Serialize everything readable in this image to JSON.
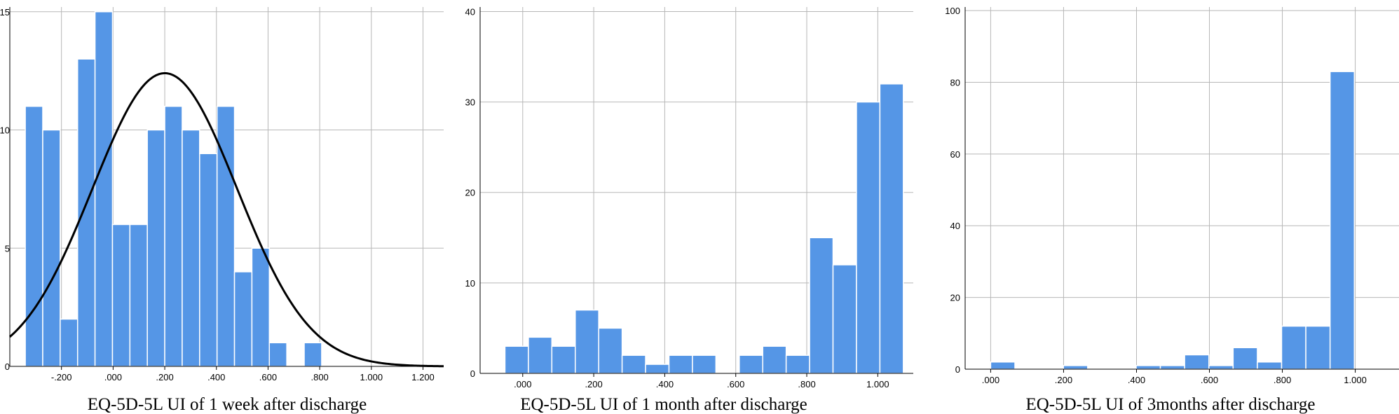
{
  "colors": {
    "bar": "#5596e6",
    "bar_edge": "#ffffff",
    "grid": "#b7b7b7",
    "axis": "#000000",
    "curve": "#000000"
  },
  "chart_data": [
    {
      "type": "bar",
      "title": "",
      "xlabel": "EQ-5D-5L UI of 1 week after discharge",
      "ylabel": "",
      "xlim": [
        -0.4,
        1.28
      ],
      "ylim": [
        0,
        15.2
      ],
      "xticks": [
        -0.2,
        0.0,
        0.2,
        0.4,
        0.6,
        0.8,
        1.0,
        1.2
      ],
      "xtick_labels": [
        "-.200",
        ".000",
        ".200",
        ".400",
        ".600",
        ".800",
        "1.000",
        "1.200"
      ],
      "yticks": [
        0,
        5,
        10,
        15
      ],
      "ytick_labels": [
        "0",
        "5",
        "10",
        "15"
      ],
      "bin_start": -0.34,
      "bin_width": 0.0675,
      "values": [
        11,
        10,
        2,
        13,
        15,
        6,
        6,
        10,
        11,
        10,
        9,
        11,
        4,
        5,
        1,
        0,
        1
      ],
      "normal_curve": {
        "mean": 0.2,
        "sd": 0.28,
        "peak": 12.4
      },
      "grid": true
    },
    {
      "type": "bar",
      "title": "",
      "xlabel": "EQ-5D-5L UI of 1 month after discharge",
      "ylabel": "",
      "xlim": [
        -0.12,
        1.1
      ],
      "ylim": [
        0,
        40.5
      ],
      "xticks": [
        0.0,
        0.2,
        0.4,
        0.6,
        0.8,
        1.0
      ],
      "xtick_labels": [
        ".000",
        ".200",
        ".400",
        ".600",
        ".800",
        "1.000"
      ],
      "yticks": [
        0,
        10,
        20,
        30,
        40
      ],
      "ytick_labels": [
        "0",
        "10",
        "20",
        "30",
        "40"
      ],
      "bin_start": -0.05,
      "bin_width": 0.066,
      "values": [
        3,
        4,
        3,
        7,
        5,
        2,
        1,
        2,
        2,
        0,
        2,
        3,
        2,
        15,
        12,
        30,
        32
      ],
      "grid": true
    },
    {
      "type": "bar",
      "title": "",
      "xlabel": "EQ-5D-5L UI of 3months after discharge",
      "ylabel": "",
      "xlim": [
        -0.07,
        1.12
      ],
      "ylim": [
        0,
        101
      ],
      "xticks": [
        0.0,
        0.2,
        0.4,
        0.6,
        0.8,
        1.0
      ],
      "xtick_labels": [
        ".000",
        ".200",
        ".400",
        ".600",
        ".800",
        "1.000"
      ],
      "yticks": [
        0,
        20,
        40,
        60,
        80,
        100
      ],
      "ytick_labels": [
        "0",
        "20",
        "40",
        "60",
        "80",
        "100"
      ],
      "bin_start": 0.0,
      "bin_width": 0.0665,
      "values": [
        2,
        0,
        0,
        1,
        0,
        0,
        1,
        1,
        4,
        1,
        6,
        2,
        12,
        12,
        83
      ],
      "grid": true
    }
  ]
}
